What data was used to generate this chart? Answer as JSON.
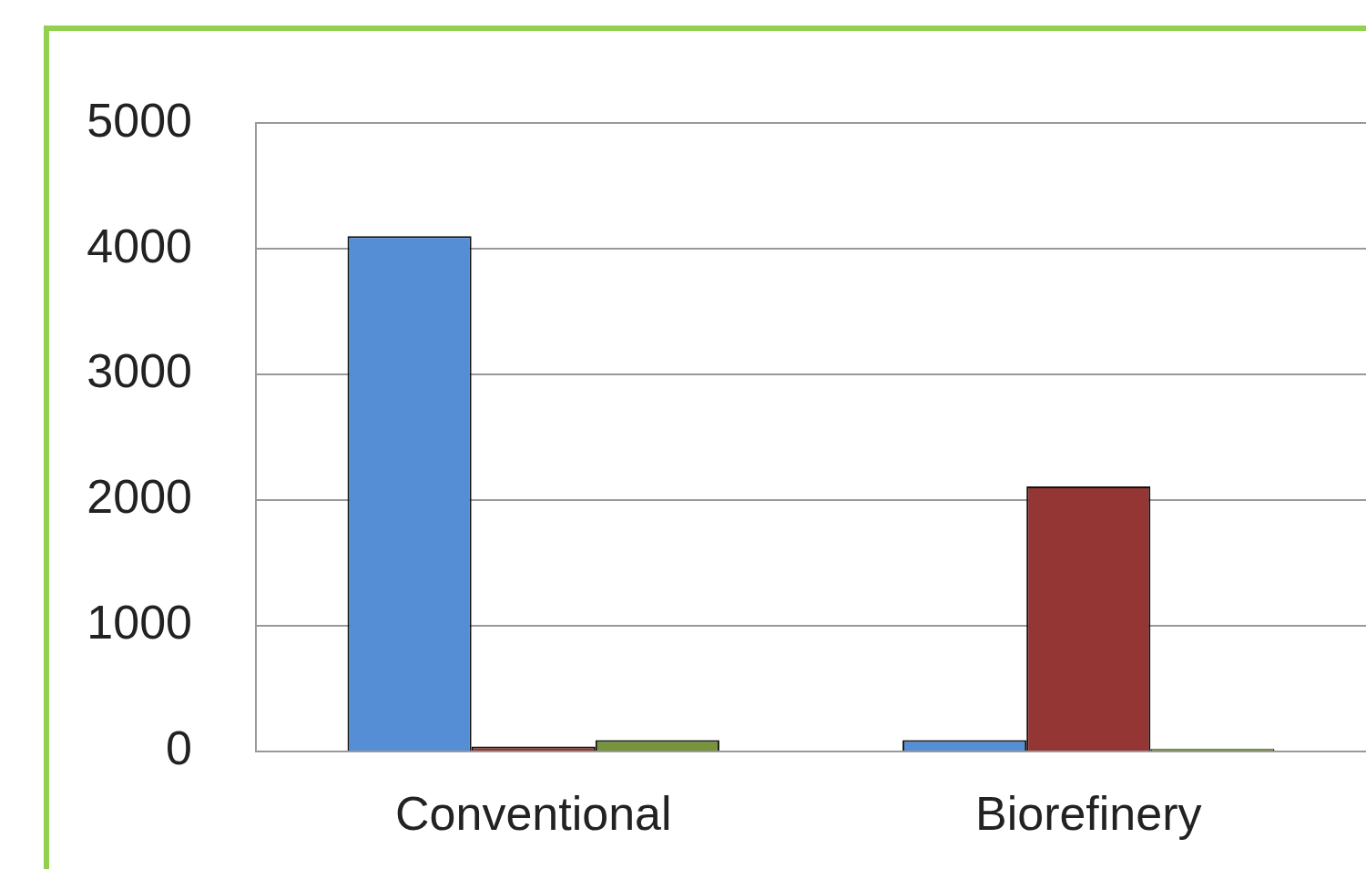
{
  "chart_data": {
    "type": "bar",
    "categories": [
      "Conventional",
      "Biorefinery"
    ],
    "series": [
      {
        "color": "#558ed5",
        "values": [
          4100,
          90
        ]
      },
      {
        "color": "#943634",
        "values": [
          40,
          2110
        ]
      },
      {
        "color": "#77933c",
        "values": [
          90,
          20
        ]
      }
    ],
    "ylim": [
      0,
      5000
    ],
    "yticks": [
      0,
      1000,
      2000,
      3000,
      4000,
      5000
    ],
    "grid": "y",
    "legend": false
  }
}
